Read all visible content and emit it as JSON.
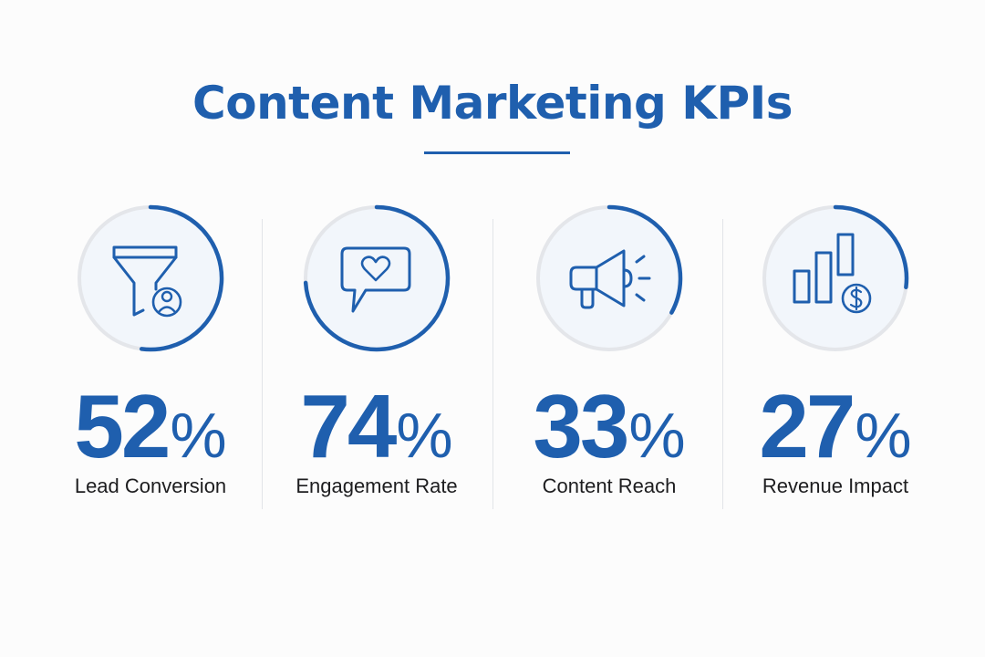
{
  "title": "Content Marketing KPIs",
  "colors": {
    "accent": "#1f5fae",
    "track": "#e4e6ea",
    "disc": "#f2f6fb",
    "label": "#1d1d1f"
  },
  "chart_data": {
    "type": "gauge",
    "title": "Content Marketing KPIs",
    "unit": "%",
    "range": [
      0,
      100
    ],
    "categories": [
      "Lead Conversion",
      "Engagement Rate",
      "Content Reach",
      "Revenue Impact"
    ],
    "values": [
      52,
      74,
      33,
      27
    ],
    "items": [
      {
        "label": "Lead Conversion",
        "value": 52,
        "value_text": "52",
        "unit": "%",
        "icon": "funnel-user-icon"
      },
      {
        "label": "Engagement Rate",
        "value": 74,
        "value_text": "74",
        "unit": "%",
        "icon": "chat-heart-icon"
      },
      {
        "label": "Content Reach",
        "value": 33,
        "value_text": "33",
        "unit": "%",
        "icon": "megaphone-icon"
      },
      {
        "label": "Revenue Impact",
        "value": 27,
        "value_text": "27",
        "unit": "%",
        "icon": "bar-chart-dollar-icon"
      }
    ]
  }
}
